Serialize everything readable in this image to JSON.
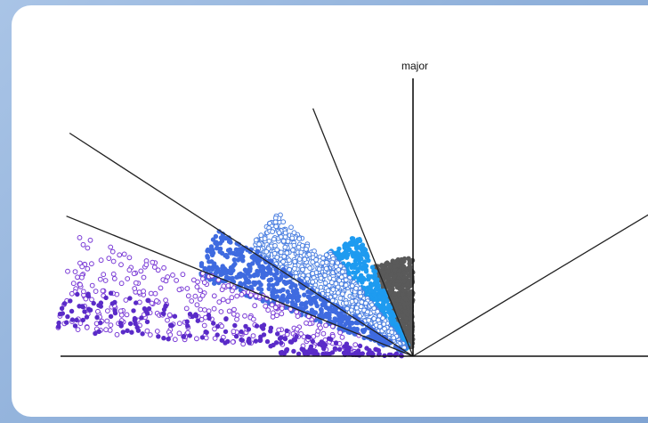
{
  "chart_data": {
    "type": "scatter",
    "title": "",
    "vertical_axis_label": "major",
    "grid": false,
    "legend": "none",
    "colors": {
      "dark_gray": "#5a5a5a",
      "sky_blue": "#1e9bf0",
      "light_blue_outline": "#4b7fe0",
      "medium_blue": "#3f6be0",
      "violet": "#7a3bd6",
      "dark_violet": "#5a2bc8",
      "line": "#222222"
    },
    "boundary_angles_deg": [
      22,
      33,
      68,
      90,
      149
    ],
    "series": [
      {
        "color_key": "dark_gray",
        "style": "filled",
        "angle_range_deg": [
          66,
          90
        ]
      },
      {
        "color_key": "sky_blue",
        "style": "filled",
        "angle_range_deg": [
          47,
          66
        ]
      },
      {
        "color_key": "light_blue_outline",
        "style": "open",
        "angle_range_deg": [
          33,
          52
        ]
      },
      {
        "color_key": "medium_blue",
        "style": "filled",
        "angle_range_deg": [
          20,
          34
        ]
      },
      {
        "color_key": "violet",
        "style": "open",
        "angle_range_deg": [
          4,
          22
        ]
      },
      {
        "color_key": "dark_violet",
        "style": "filled",
        "angle_range_deg": [
          1,
          12
        ]
      }
    ]
  }
}
